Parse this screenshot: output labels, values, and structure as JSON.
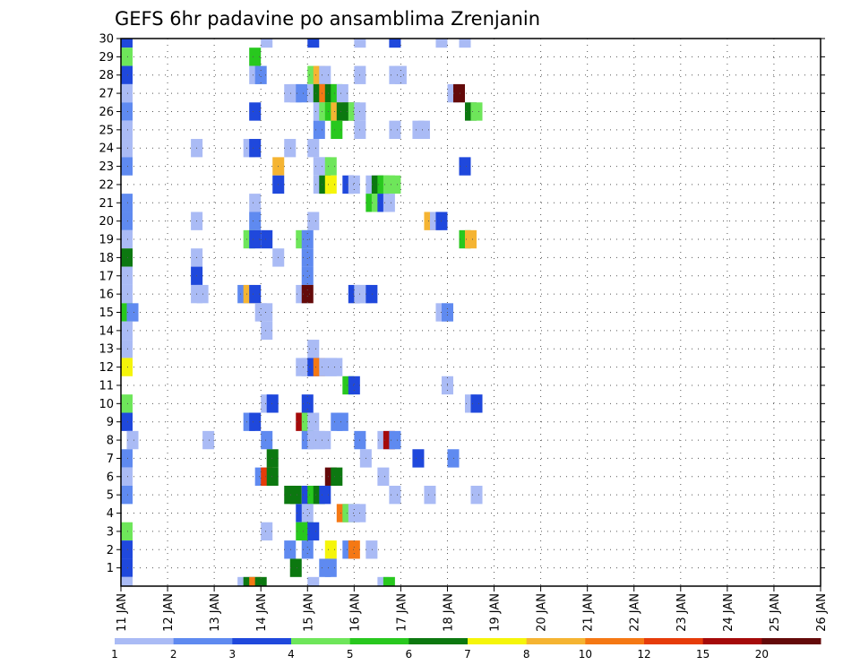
{
  "chart_data": {
    "type": "heatmap",
    "title": "GEFS 6hr padavine po ansamblima Zrenjanin",
    "x_tick_labels": [
      "11 JAN",
      "12 JAN",
      "13 JAN",
      "14 JAN",
      "15 JAN",
      "16 JAN",
      "17 JAN",
      "18 JAN",
      "19 JAN",
      "20 JAN",
      "21 JAN",
      "22 JAN",
      "23 JAN",
      "24 JAN",
      "25 JAN",
      "26 JAN"
    ],
    "y_tick_labels": [
      "1",
      "2",
      "3",
      "4",
      "5",
      "6",
      "7",
      "8",
      "9",
      "10",
      "11",
      "12",
      "13",
      "14",
      "15",
      "16",
      "17",
      "18",
      "19",
      "20",
      "21",
      "22",
      "23",
      "24",
      "25",
      "26",
      "27",
      "28",
      "29",
      "30"
    ],
    "x_range_days": [
      0,
      15
    ],
    "time_step_hours": 6,
    "y_range": [
      0,
      30
    ],
    "grid": true,
    "legend": {
      "placement": "bottom",
      "levels": [
        "1",
        "2",
        "3",
        "4",
        "5",
        "6",
        "7",
        "8",
        "10",
        "12",
        "15",
        "20"
      ],
      "colors": [
        "#aabbf5",
        "#5f8af0",
        "#1f48dc",
        "#6ee65a",
        "#28c81e",
        "#0c7810",
        "#f5f50a",
        "#f5b432",
        "#f57814",
        "#e63c0a",
        "#a50a0a",
        "#640a0a"
      ]
    },
    "cells_note": "each cell: [time step index (6 h steps from 11 JAN 00z), ensemble member, class index into legend colors]",
    "cells": [
      [
        0,
        30,
        2
      ],
      [
        12,
        30,
        0
      ],
      [
        16,
        30,
        2
      ],
      [
        20,
        30,
        0
      ],
      [
        23,
        30,
        2
      ],
      [
        27,
        30,
        0
      ],
      [
        29,
        30,
        0
      ],
      [
        0,
        29,
        3
      ],
      [
        11,
        29,
        4
      ],
      [
        0,
        28,
        2
      ],
      [
        11,
        28,
        0
      ],
      [
        11.5,
        28,
        1
      ],
      [
        16,
        28,
        3
      ],
      [
        16.5,
        28,
        7
      ],
      [
        17,
        28,
        0
      ],
      [
        20,
        28,
        0
      ],
      [
        23,
        28,
        0
      ],
      [
        23.5,
        28,
        0
      ],
      [
        0,
        27,
        0
      ],
      [
        14,
        27,
        0
      ],
      [
        14.5,
        27,
        0
      ],
      [
        15,
        27,
        1
      ],
      [
        16,
        27,
        0
      ],
      [
        16.5,
        27,
        5
      ],
      [
        17,
        27,
        8
      ],
      [
        17.5,
        27,
        5
      ],
      [
        18,
        27,
        4
      ],
      [
        18.5,
        27,
        0
      ],
      [
        28,
        27,
        0
      ],
      [
        28.5,
        27,
        11
      ],
      [
        0,
        26,
        1
      ],
      [
        11,
        26,
        2
      ],
      [
        16.5,
        26,
        0
      ],
      [
        17,
        26,
        3
      ],
      [
        17.5,
        26,
        4
      ],
      [
        18,
        26,
        7
      ],
      [
        18.5,
        26,
        5
      ],
      [
        19,
        26,
        5
      ],
      [
        19.5,
        26,
        3
      ],
      [
        20,
        26,
        0
      ],
      [
        29.5,
        26,
        5
      ],
      [
        30,
        26,
        3
      ],
      [
        0,
        25,
        0
      ],
      [
        16.5,
        25,
        1
      ],
      [
        18,
        25,
        4
      ],
      [
        20,
        25,
        0
      ],
      [
        23,
        25,
        0
      ],
      [
        25,
        25,
        0
      ],
      [
        25.5,
        25,
        0
      ],
      [
        0,
        24,
        0
      ],
      [
        6,
        24,
        0
      ],
      [
        10.5,
        24,
        0
      ],
      [
        11,
        24,
        2
      ],
      [
        14,
        24,
        0
      ],
      [
        16,
        24,
        0
      ],
      [
        0,
        23,
        1
      ],
      [
        13,
        23,
        7
      ],
      [
        16.5,
        23,
        0
      ],
      [
        17,
        23,
        0
      ],
      [
        17.5,
        23,
        3
      ],
      [
        29,
        23,
        2
      ],
      [
        13,
        22,
        2
      ],
      [
        16.5,
        22,
        0
      ],
      [
        17,
        22,
        5
      ],
      [
        17.5,
        22,
        6
      ],
      [
        19,
        22,
        2
      ],
      [
        19.5,
        22,
        0
      ],
      [
        21,
        22,
        0
      ],
      [
        21.5,
        22,
        5
      ],
      [
        22,
        22,
        4
      ],
      [
        22.5,
        22,
        3
      ],
      [
        23,
        22,
        3
      ],
      [
        0,
        21,
        1
      ],
      [
        11,
        21,
        0
      ],
      [
        21,
        21,
        4
      ],
      [
        21.5,
        21,
        3
      ],
      [
        22,
        21,
        2
      ],
      [
        22.5,
        21,
        0
      ],
      [
        0,
        20,
        1
      ],
      [
        6,
        20,
        0
      ],
      [
        11,
        20,
        1
      ],
      [
        16,
        20,
        0
      ],
      [
        26,
        20,
        7
      ],
      [
        26.5,
        20,
        0
      ],
      [
        27,
        20,
        2
      ],
      [
        0,
        19,
        0
      ],
      [
        10.5,
        19,
        3
      ],
      [
        11,
        19,
        2
      ],
      [
        12,
        19,
        2
      ],
      [
        15,
        19,
        3
      ],
      [
        15.5,
        19,
        1
      ],
      [
        29,
        19,
        4
      ],
      [
        29.5,
        19,
        7
      ],
      [
        0,
        18,
        5
      ],
      [
        6,
        18,
        0
      ],
      [
        13,
        18,
        0
      ],
      [
        15.5,
        18,
        1
      ],
      [
        0,
        17,
        0
      ],
      [
        6,
        17,
        2
      ],
      [
        15.5,
        17,
        1
      ],
      [
        0,
        16,
        0
      ],
      [
        6,
        16,
        0
      ],
      [
        6.5,
        16,
        0
      ],
      [
        10,
        16,
        1
      ],
      [
        10.5,
        16,
        7
      ],
      [
        11,
        16,
        2
      ],
      [
        15,
        16,
        0
      ],
      [
        15.5,
        16,
        11
      ],
      [
        19.5,
        16,
        2
      ],
      [
        20,
        16,
        0
      ],
      [
        20.5,
        16,
        0
      ],
      [
        21,
        16,
        2
      ],
      [
        0,
        15,
        4
      ],
      [
        0.5,
        15,
        1
      ],
      [
        11.5,
        15,
        0
      ],
      [
        12,
        15,
        0
      ],
      [
        27,
        15,
        0
      ],
      [
        27.5,
        15,
        1
      ],
      [
        0,
        14,
        0
      ],
      [
        12,
        14,
        0
      ],
      [
        0,
        13,
        0
      ],
      [
        16,
        13,
        0
      ],
      [
        0,
        12,
        6
      ],
      [
        15,
        12,
        0
      ],
      [
        15.5,
        12,
        0
      ],
      [
        16,
        12,
        2
      ],
      [
        16.5,
        12,
        8
      ],
      [
        17,
        12,
        0
      ],
      [
        17.5,
        12,
        0
      ],
      [
        18,
        12,
        0
      ],
      [
        19,
        11,
        4
      ],
      [
        19.5,
        11,
        2
      ],
      [
        27.5,
        11,
        0
      ],
      [
        0,
        10,
        3
      ],
      [
        12,
        10,
        0
      ],
      [
        12.5,
        10,
        2
      ],
      [
        15.5,
        10,
        2
      ],
      [
        29.5,
        10,
        0
      ],
      [
        30,
        10,
        2
      ],
      [
        0,
        9,
        2
      ],
      [
        10.5,
        9,
        1
      ],
      [
        11,
        9,
        2
      ],
      [
        15,
        9,
        10
      ],
      [
        15.5,
        9,
        3
      ],
      [
        16,
        9,
        0
      ],
      [
        18,
        9,
        1
      ],
      [
        18.5,
        9,
        1
      ],
      [
        0.5,
        8,
        0
      ],
      [
        7,
        8,
        0
      ],
      [
        12,
        8,
        1
      ],
      [
        15.5,
        8,
        1
      ],
      [
        16,
        8,
        0
      ],
      [
        16.5,
        8,
        0
      ],
      [
        17,
        8,
        0
      ],
      [
        20,
        8,
        1
      ],
      [
        22,
        8,
        0
      ],
      [
        22.5,
        8,
        10
      ],
      [
        23,
        8,
        1
      ],
      [
        0,
        7,
        1
      ],
      [
        12.5,
        7,
        5
      ],
      [
        20.5,
        7,
        0
      ],
      [
        25,
        7,
        2
      ],
      [
        28,
        7,
        1
      ],
      [
        0,
        6,
        0
      ],
      [
        11.5,
        6,
        1
      ],
      [
        12,
        6,
        9
      ],
      [
        12.5,
        6,
        5
      ],
      [
        17.5,
        6,
        11
      ],
      [
        18,
        6,
        5
      ],
      [
        22,
        6,
        0
      ],
      [
        0,
        5,
        1
      ],
      [
        14,
        5,
        5
      ],
      [
        14.5,
        5,
        5
      ],
      [
        15.5,
        5,
        2
      ],
      [
        16,
        5,
        4
      ],
      [
        16.5,
        5,
        5
      ],
      [
        17,
        5,
        2
      ],
      [
        23,
        5,
        0
      ],
      [
        26,
        5,
        0
      ],
      [
        30,
        5,
        0
      ],
      [
        15,
        4,
        2
      ],
      [
        15.5,
        4,
        0
      ],
      [
        18.5,
        4,
        8
      ],
      [
        19,
        4,
        3
      ],
      [
        19.5,
        4,
        0
      ],
      [
        20,
        4,
        0
      ],
      [
        0,
        3,
        3
      ],
      [
        12,
        3,
        0
      ],
      [
        15,
        3,
        4
      ],
      [
        15.5,
        3,
        4
      ],
      [
        16,
        3,
        2
      ],
      [
        0,
        2,
        2
      ],
      [
        14,
        2,
        1
      ],
      [
        15.5,
        2,
        1
      ],
      [
        17.5,
        2,
        6
      ],
      [
        19,
        2,
        1
      ],
      [
        19.5,
        2,
        8
      ],
      [
        21,
        2,
        0
      ],
      [
        0,
        1,
        2
      ],
      [
        14.5,
        1,
        5
      ],
      [
        17,
        1,
        1
      ],
      [
        17.5,
        1,
        1
      ],
      [
        0,
        0,
        0
      ],
      [
        10,
        0,
        0
      ],
      [
        10.5,
        0,
        5
      ],
      [
        11,
        0,
        8
      ],
      [
        11.5,
        0,
        5
      ],
      [
        16,
        0,
        0
      ],
      [
        22,
        0,
        0
      ],
      [
        22.5,
        0,
        4
      ]
    ]
  }
}
